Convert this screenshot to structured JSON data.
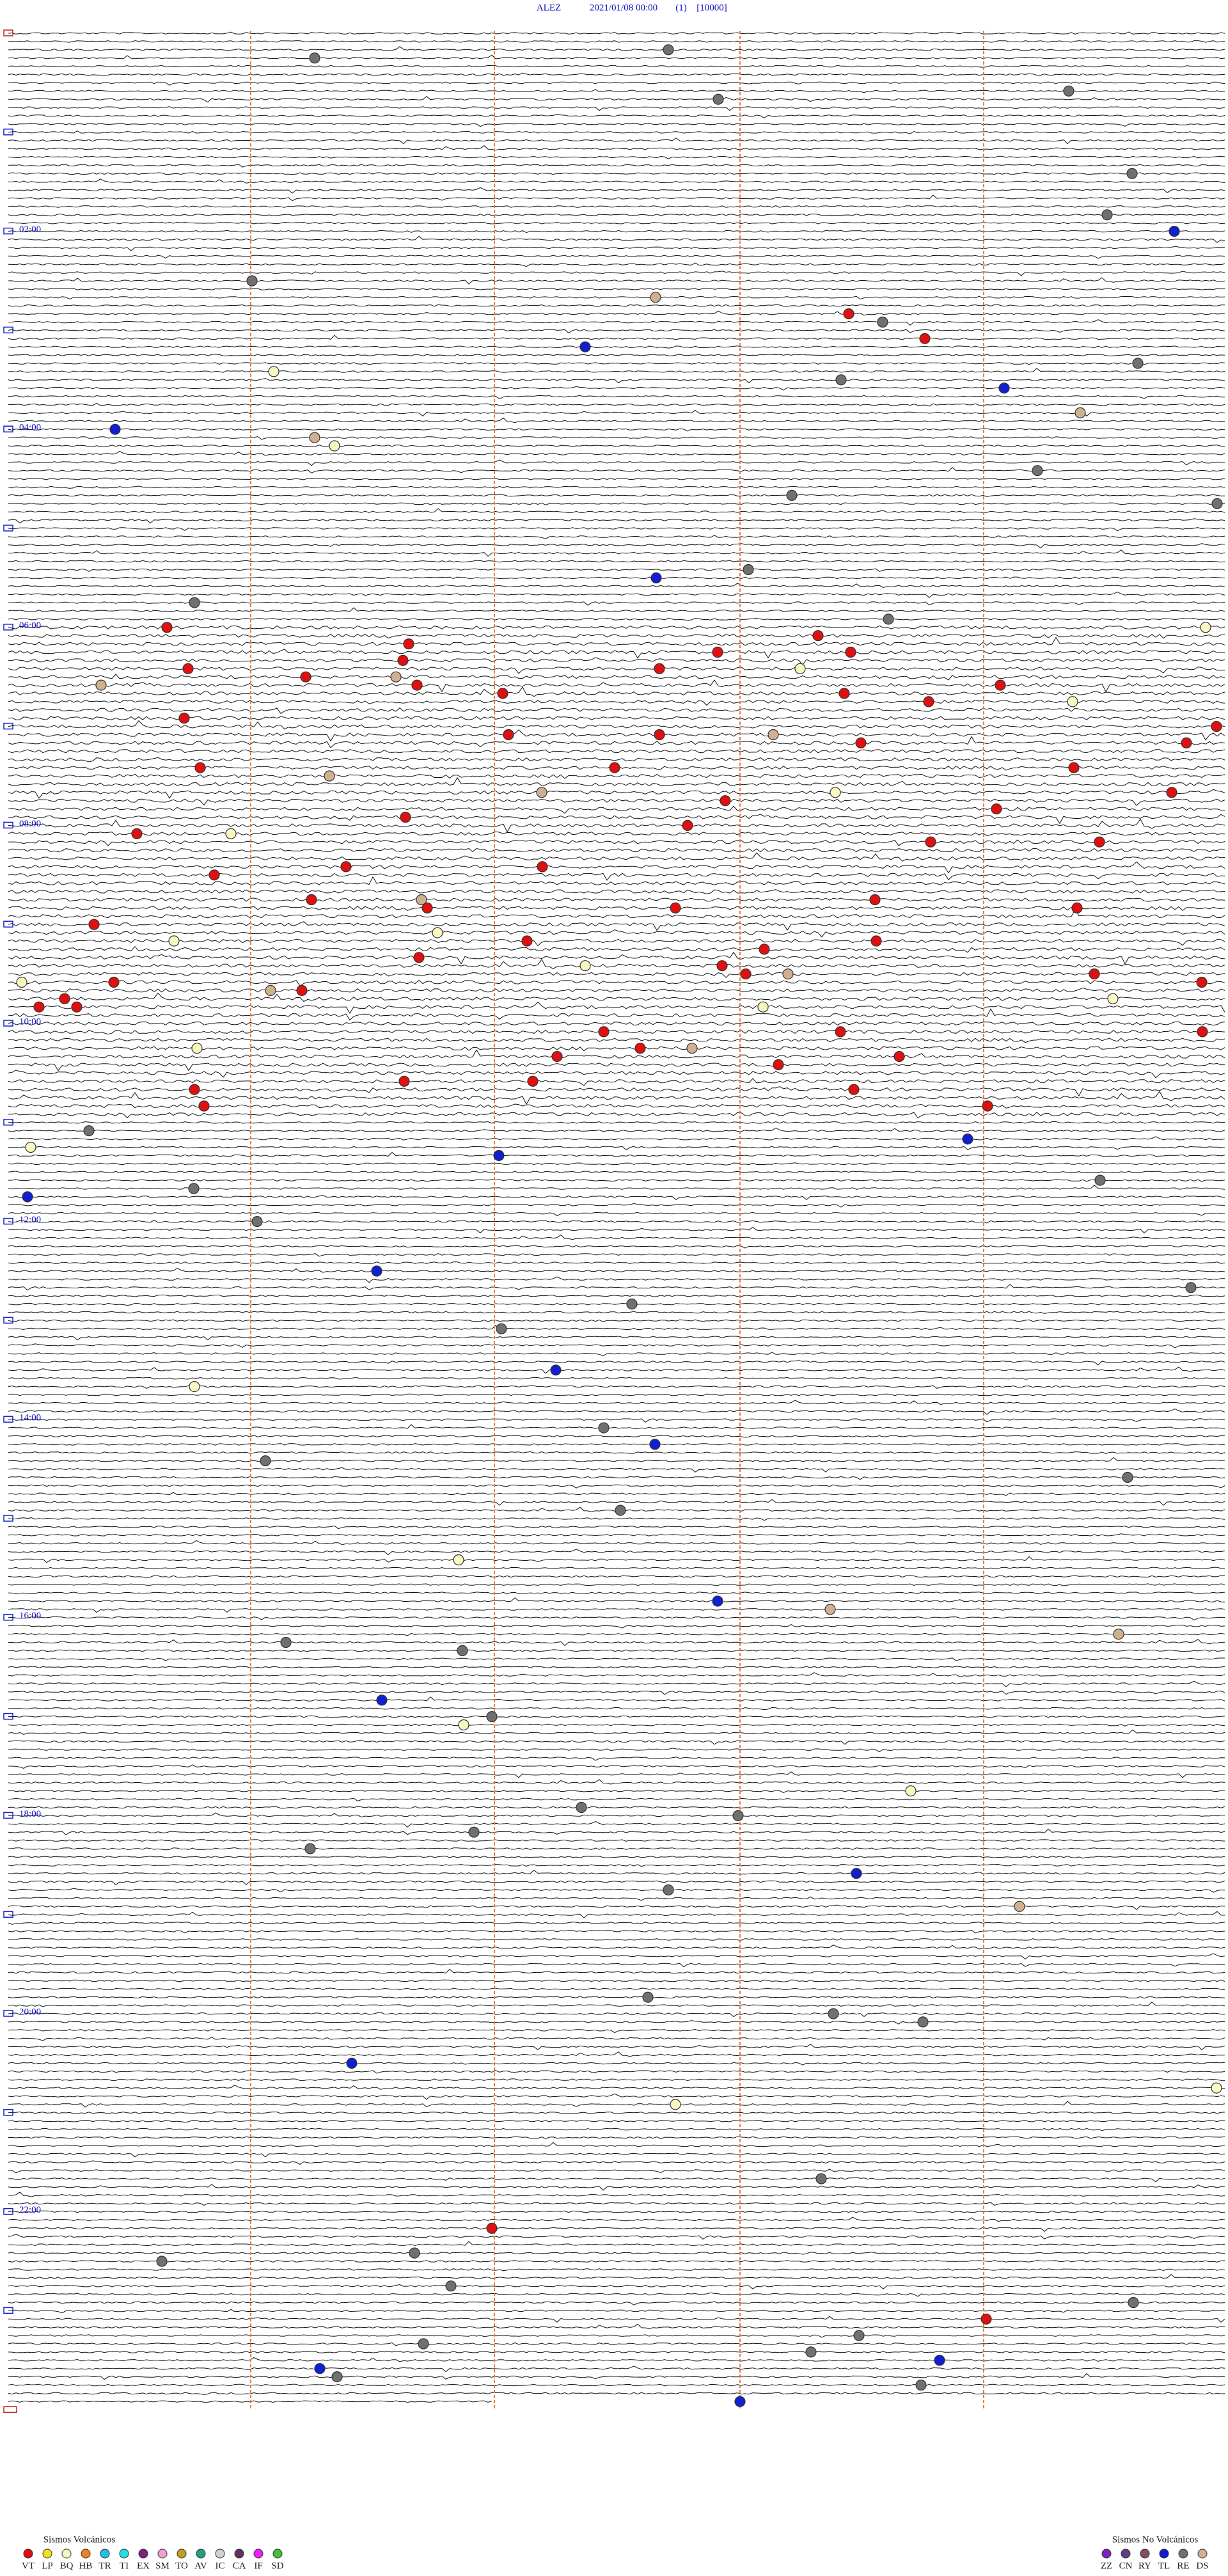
{
  "header": {
    "station": "ALEZ",
    "datetime": "2021/01/08 00:00",
    "channel": "(1)",
    "scale": "[10000]"
  },
  "time_labels": [
    "02:00",
    "04:00",
    "06:00",
    "08:00",
    "10:00",
    "12:00",
    "14:00",
    "16:00",
    "18:00",
    "20:00",
    "22:00"
  ],
  "legend": {
    "volcanic": {
      "title": "Sismos Volcánicos",
      "items": [
        {
          "code": "VT",
          "color": "#e01010"
        },
        {
          "code": "LP",
          "color": "#f0e020"
        },
        {
          "code": "BQ",
          "color": "#f8f8c0"
        },
        {
          "code": "HB",
          "color": "#f08020"
        },
        {
          "code": "TR",
          "color": "#20c0e0"
        },
        {
          "code": "TI",
          "color": "#20e0e0"
        },
        {
          "code": "EX",
          "color": "#802080"
        },
        {
          "code": "SM",
          "color": "#f0a0d0"
        },
        {
          "code": "TO",
          "color": "#c0a020"
        },
        {
          "code": "AV",
          "color": "#20a080"
        },
        {
          "code": "IC",
          "color": "#d0d0d0"
        },
        {
          "code": "CA",
          "color": "#603060"
        },
        {
          "code": "IF",
          "color": "#f020f0"
        },
        {
          "code": "SD",
          "color": "#40c040"
        }
      ]
    },
    "non_volcanic": {
      "title": "Sismos No Volcánicos",
      "items": [
        {
          "code": "ZZ",
          "color": "#8020c0"
        },
        {
          "code": "CN",
          "color": "#604080"
        },
        {
          "code": "RY",
          "color": "#805060"
        },
        {
          "code": "TL",
          "color": "#1020d0"
        },
        {
          "code": "RE",
          "color": "#707070"
        },
        {
          "code": "DS",
          "color": "#d0b090"
        }
      ]
    }
  }
}
